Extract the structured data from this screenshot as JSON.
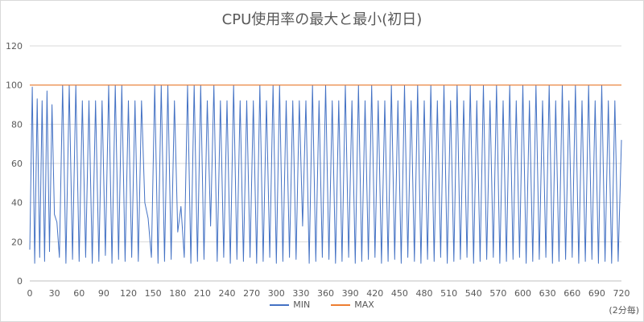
{
  "chart_data": {
    "type": "line",
    "title": "CPU使用率の最大と最小(初日)",
    "xlabel": "(2分毎)",
    "ylabel": "",
    "xlim": [
      0,
      720
    ],
    "ylim": [
      0,
      120
    ],
    "x_ticks": [
      0,
      30,
      60,
      90,
      120,
      150,
      180,
      210,
      240,
      270,
      300,
      330,
      360,
      390,
      420,
      450,
      480,
      510,
      540,
      570,
      600,
      630,
      660,
      690,
      720
    ],
    "y_ticks": [
      0,
      20,
      40,
      60,
      80,
      100,
      120
    ],
    "grid": true,
    "legend_position": "bottom",
    "series": [
      {
        "name": "MIN",
        "color": "#4472c4",
        "description": "oscillating between ~8 and ~92-100 every sample, with sharp dips to ~25-40 around x≈30, 140, 185, 225",
        "x": [
          0,
          3,
          6,
          9,
          12,
          15,
          18,
          21,
          24,
          27,
          30,
          33,
          36,
          40,
          44,
          48,
          52,
          56,
          60,
          64,
          68,
          72,
          76,
          80,
          84,
          88,
          92,
          96,
          100,
          104,
          108,
          112,
          116,
          120,
          124,
          128,
          132,
          136,
          140,
          144,
          148,
          152,
          156,
          160,
          164,
          168,
          172,
          176,
          180,
          184,
          188,
          192,
          196,
          200,
          204,
          208,
          212,
          216,
          220,
          224,
          228,
          232,
          236,
          240,
          244,
          248,
          252,
          256,
          260,
          264,
          268,
          272,
          276,
          280,
          284,
          288,
          292,
          296,
          300,
          304,
          308,
          312,
          316,
          320,
          324,
          328,
          332,
          336,
          340,
          344,
          348,
          352,
          356,
          360,
          364,
          368,
          372,
          376,
          380,
          384,
          388,
          392,
          396,
          400,
          404,
          408,
          412,
          416,
          420,
          424,
          428,
          432,
          436,
          440,
          444,
          448,
          452,
          456,
          460,
          464,
          468,
          472,
          476,
          480,
          484,
          488,
          492,
          496,
          500,
          504,
          508,
          512,
          516,
          520,
          524,
          528,
          532,
          536,
          540,
          544,
          548,
          552,
          556,
          560,
          564,
          568,
          572,
          576,
          580,
          584,
          588,
          592,
          596,
          600,
          604,
          608,
          612,
          616,
          620,
          624,
          628,
          632,
          636,
          640,
          644,
          648,
          652,
          656,
          660,
          664,
          668,
          672,
          676,
          680,
          684,
          688,
          692,
          696,
          700,
          704,
          708,
          712,
          716,
          720
        ],
        "y": [
          16,
          99,
          9,
          93,
          12,
          92,
          10,
          97,
          15,
          90,
          34,
          30,
          12,
          100,
          9,
          100,
          11,
          100,
          10,
          92,
          12,
          92,
          9,
          92,
          10,
          92,
          13,
          100,
          9,
          100,
          11,
          100,
          10,
          92,
          12,
          92,
          10,
          92,
          40,
          32,
          12,
          100,
          9,
          100,
          10,
          100,
          11,
          92,
          25,
          38,
          12,
          100,
          9,
          100,
          10,
          100,
          11,
          92,
          28,
          100,
          10,
          92,
          12,
          92,
          9,
          100,
          11,
          92,
          10,
          92,
          12,
          92,
          9,
          100,
          10,
          92,
          12,
          100,
          9,
          100,
          10,
          92,
          12,
          92,
          11,
          92,
          28,
          92,
          9,
          100,
          10,
          92,
          12,
          100,
          11,
          92,
          9,
          92,
          10,
          100,
          12,
          92,
          9,
          100,
          10,
          92,
          11,
          100,
          12,
          92,
          9,
          92,
          10,
          100,
          11,
          92,
          9,
          100,
          12,
          92,
          10,
          100,
          9,
          92,
          11,
          100,
          10,
          92,
          12,
          100,
          9,
          92,
          10,
          100,
          11,
          92,
          12,
          100,
          9,
          92,
          10,
          100,
          11,
          92,
          12,
          100,
          9,
          92,
          10,
          100,
          11,
          92,
          12,
          100,
          9,
          92,
          10,
          100,
          11,
          92,
          12,
          100,
          9,
          92,
          10,
          100,
          11,
          92,
          12,
          100,
          9,
          92,
          10,
          100,
          11,
          92,
          9,
          100,
          10,
          92,
          9,
          92,
          10,
          72
        ]
      },
      {
        "name": "MAX",
        "color": "#ed7d31",
        "x": [
          0,
          720
        ],
        "y": [
          100,
          100
        ]
      }
    ]
  },
  "legend": {
    "min_label": "MIN",
    "max_label": "MAX"
  }
}
